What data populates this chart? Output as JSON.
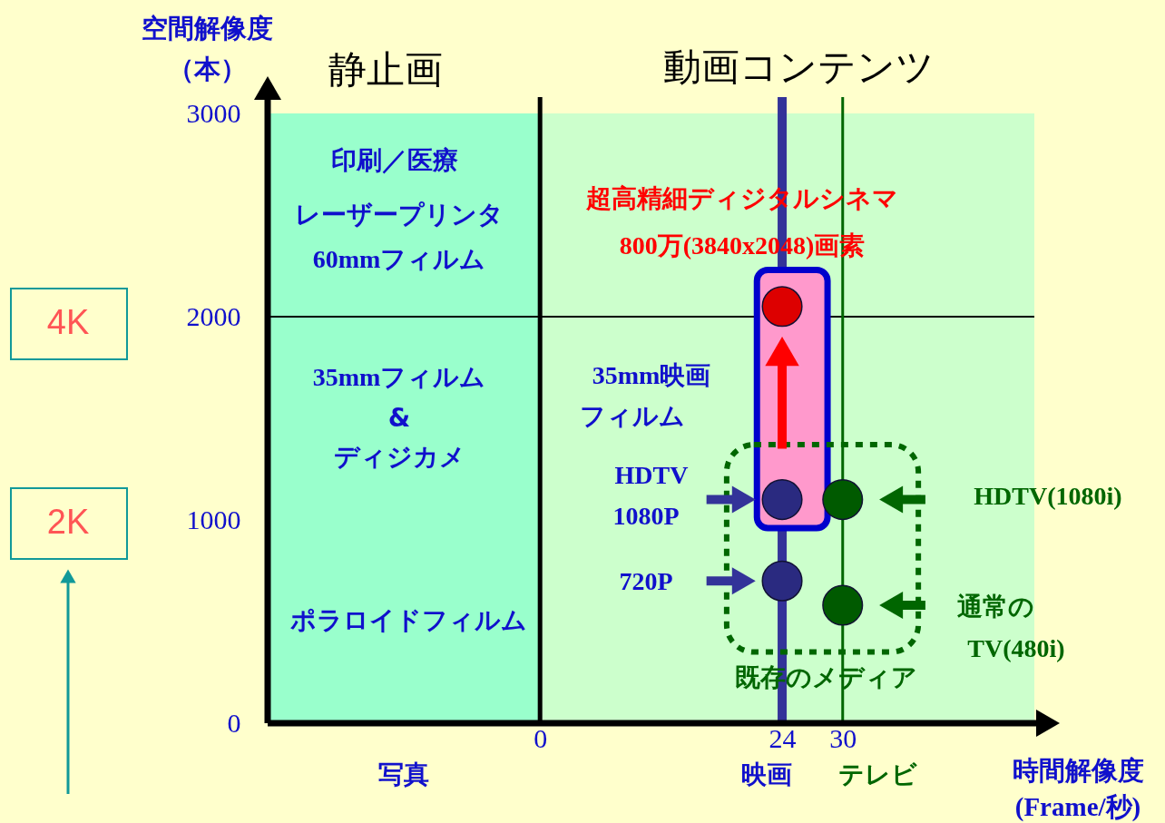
{
  "chart_data": {
    "type": "scatter",
    "xlabel": "時間解像度(Frame/秒)",
    "ylabel": "空間解像度（本）",
    "xlim": [
      -27,
      49
    ],
    "xticks": [
      0,
      24,
      30
    ],
    "ylim": [
      0,
      3000
    ],
    "yticks": [
      0,
      1000,
      2000,
      3000
    ],
    "grid": false,
    "marker": "circle",
    "x": [
      24,
      30
    ],
    "series": [
      {
        "color": "#2a2a80",
        "values": [
          1100,
          null
        ]
      },
      {
        "color": "#2a2a80",
        "values": [
          700,
          null
        ]
      },
      {
        "color": "#005a00",
        "values": [
          null,
          1100
        ]
      },
      {
        "color": "#005a00",
        "values": [
          null,
          580
        ]
      },
      {
        "color": "#dd0000",
        "values": [
          2050,
          null
        ]
      }
    ],
    "bands": [
      {
        "axis": "x",
        "from": -27,
        "to": 0,
        "color": "#99ffcc"
      },
      {
        "axis": "x",
        "from": 0,
        "to": 49,
        "color": "#ccffcc"
      }
    ],
    "ref_lines": [
      {
        "axis": "y",
        "value": 2000,
        "color": "#000000"
      },
      {
        "axis": "x",
        "value": 0,
        "color": "#000000"
      },
      {
        "axis": "x",
        "value": 24,
        "color": "#333399"
      },
      {
        "axis": "x",
        "value": 30,
        "color": "#006600"
      }
    ],
    "annotations": [
      "静止画",
      "動画コンテンツ",
      "印刷／医療",
      "レーザープリンタ",
      "60mmフィルム",
      "35mmフィルム",
      "&",
      "ディジカメ",
      "ポラロイドフィルム",
      "超高精細ディジタルシネマ",
      "800万(3840x2048)画素",
      "35mm映画",
      "フィルム",
      "HDTV",
      "1080P",
      "720P",
      "HDTV(1080i)",
      "通常の",
      "TV(480i)",
      "既存のメディア",
      "写真",
      "映画",
      "テレビ",
      "4K",
      "2K"
    ]
  }
}
